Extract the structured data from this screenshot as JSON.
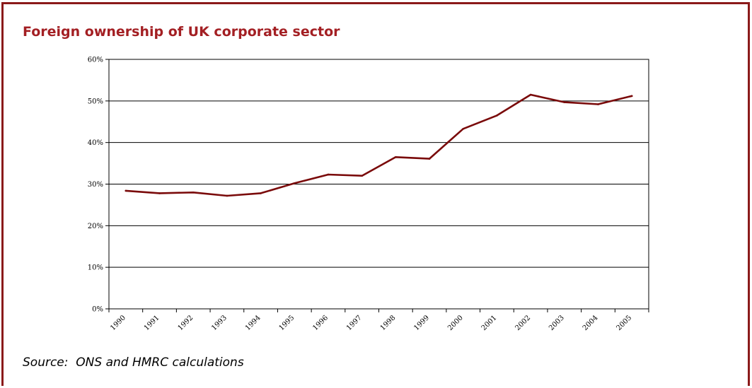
{
  "chart_data": {
    "type": "line",
    "title": "Foreign ownership of UK corporate sector",
    "xlabel": "",
    "ylabel": "",
    "categories": [
      "1990",
      "1991",
      "1992",
      "1993",
      "1994",
      "1995",
      "1996",
      "1997",
      "1998",
      "1999",
      "2000",
      "2001",
      "2002",
      "2003",
      "2004",
      "2005"
    ],
    "series": [
      {
        "values": [
          28.4,
          27.8,
          28.0,
          27.2,
          27.8,
          30.2,
          32.3,
          32.0,
          36.5,
          36.1,
          43.3,
          46.5,
          51.5,
          49.7,
          49.2,
          51.2
        ],
        "color": "#7a0a0a"
      }
    ],
    "ylim": [
      0,
      60
    ],
    "yticks": [
      0,
      10,
      20,
      30,
      40,
      50,
      60
    ],
    "ytick_labels": [
      "0%",
      "10%",
      "20%",
      "30%",
      "40%",
      "50%",
      "60%"
    ],
    "grid": true,
    "legend": "none",
    "source": "Source:  ONS and HMRC calculations"
  },
  "colors": {
    "frame": "#8b1a1a",
    "title": "#a31f23",
    "line": "#7a0a0a",
    "grid": "#000000"
  }
}
